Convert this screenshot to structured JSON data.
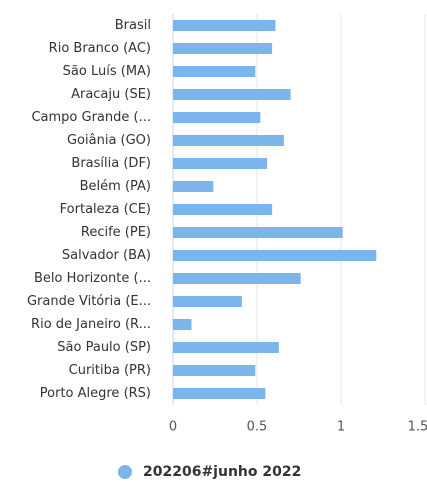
{
  "chart_data": {
    "type": "bar",
    "orientation": "horizontal",
    "categories": [
      "Brasil",
      "Rio Branco (AC)",
      "São Luís (MA)",
      "Aracaju (SE)",
      "Campo Grande (...",
      "Goiânia (GO)",
      "Brasília (DF)",
      "Belém (PA)",
      "Fortaleza (CE)",
      "Recife (PE)",
      "Salvador (BA)",
      "Belo Horizonte (...",
      "Grande Vitória (E...",
      "Rio de Janeiro (R...",
      "São Paulo (SP)",
      "Curitiba (PR)",
      "Porto Alegre (RS)"
    ],
    "series": [
      {
        "name": "202206#junho 2022",
        "color": "#7cb5ec",
        "values": [
          0.61,
          0.59,
          0.49,
          0.7,
          0.52,
          0.66,
          0.56,
          0.24,
          0.59,
          1.01,
          1.21,
          0.76,
          0.41,
          0.11,
          0.63,
          0.49,
          0.55
        ]
      }
    ],
    "xlim": [
      0,
      1.5
    ],
    "xticks": [
      0,
      0.5,
      1,
      1.5
    ],
    "grid": true,
    "legend": "bottom"
  }
}
